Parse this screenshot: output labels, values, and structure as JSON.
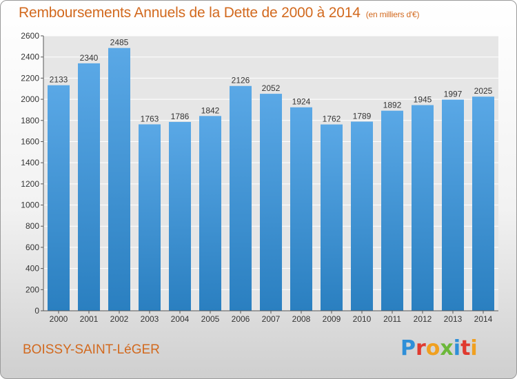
{
  "chart_data": {
    "type": "bar",
    "title": "Remboursements Annuels de la Dette de 2000 à 2014",
    "subtitle": "(en milliers d'€)",
    "categories": [
      "2000",
      "2001",
      "2002",
      "2003",
      "2004",
      "2005",
      "2006",
      "2007",
      "2008",
      "2009",
      "2010",
      "2011",
      "2012",
      "2013",
      "2014"
    ],
    "values": [
      2133,
      2340,
      2485,
      1763,
      1786,
      1842,
      2126,
      2052,
      1924,
      1762,
      1789,
      1892,
      1945,
      1997,
      2025
    ],
    "ylim": [
      0,
      2600
    ],
    "yticks": [
      0,
      200,
      400,
      600,
      800,
      1000,
      1200,
      1400,
      1600,
      1800,
      2000,
      2200,
      2400,
      2600
    ],
    "grid": true,
    "bar_color": "#5aa8e6",
    "bar_color_dark": "#2a7fc0"
  },
  "footer": {
    "location": "BOISSY-SAINT-LéGER",
    "brand": "Proxiti"
  },
  "colors": {
    "title": "#d2691e",
    "brand_letters": [
      "#2f8fd8",
      "#e03a2f",
      "#f0a020",
      "#6cb83a",
      "#2f8fd8",
      "#e03a2f",
      "#f0a020"
    ]
  }
}
